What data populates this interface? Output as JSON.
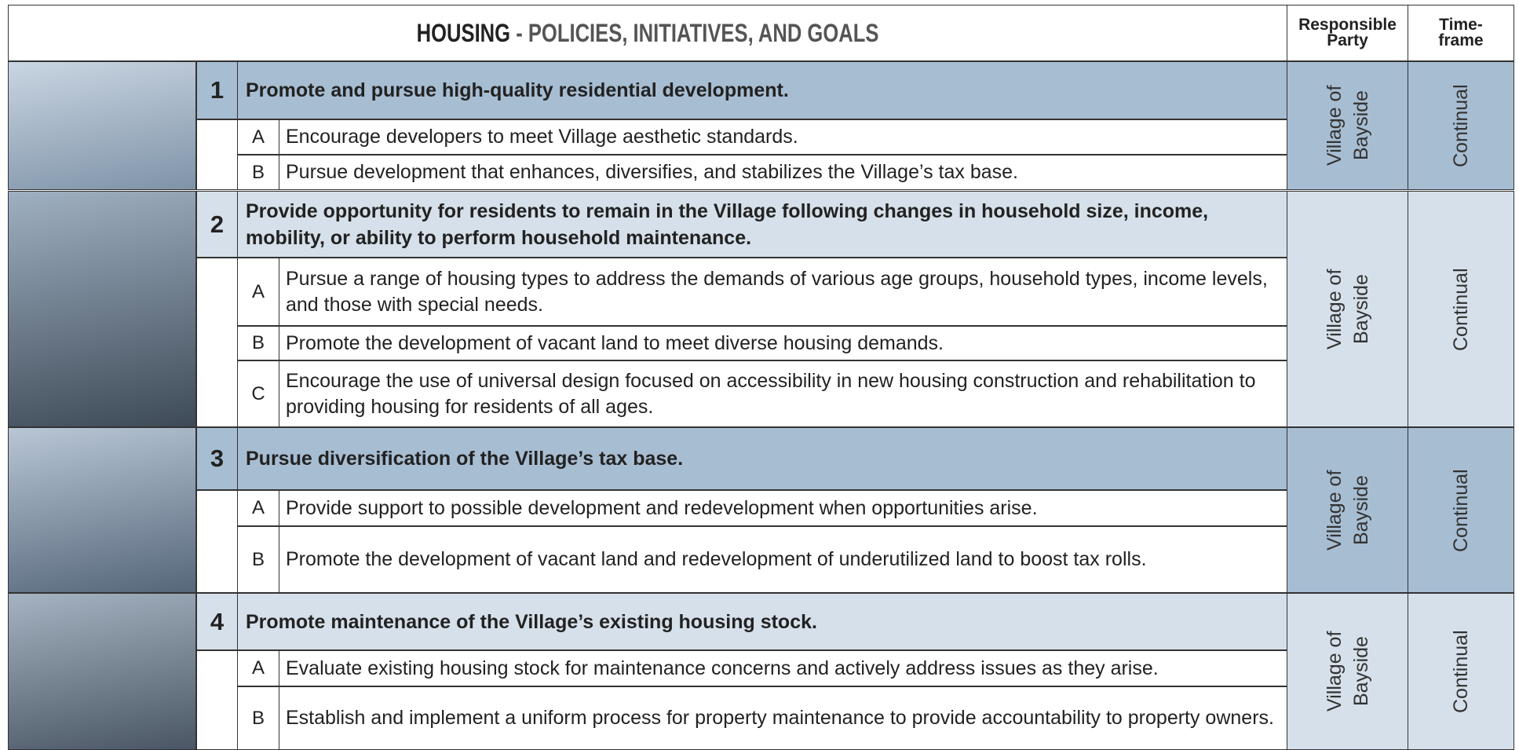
{
  "header": {
    "title_bold": "HOUSING",
    "title_rest": "- POLICIES, INITIATIVES, AND GOALS",
    "responsible": "Responsible Party",
    "timeframe": "Time-frame"
  },
  "sections": [
    {
      "number": "1",
      "goal": "Promote and pursue high-quality residential development.",
      "responsible": "Village of Bayside",
      "timeframe": "Continual",
      "items": [
        {
          "letter": "A",
          "text": "Encourage developers to meet Village aesthetic standards."
        },
        {
          "letter": "B",
          "text": "Pursue development that enhances, diversifies, and stabilizes the Village’s tax base."
        }
      ]
    },
    {
      "number": "2",
      "goal": "Provide opportunity for residents to remain in the Village following changes in household size, income, mobility, or ability to perform household maintenance.",
      "responsible": "Village of Bayside",
      "timeframe": "Continual",
      "items": [
        {
          "letter": "A",
          "text": "Pursue a range of housing types to address the demands of various age groups, household types, income levels, and those with special needs."
        },
        {
          "letter": "B",
          "text": "Promote the development of vacant land to meet diverse housing demands."
        },
        {
          "letter": "C",
          "text": "Encourage the use of universal design focused on accessibility in new housing construction and rehabilitation to providing housing for residents of all ages."
        }
      ]
    },
    {
      "number": "3",
      "goal": "Pursue diversification of the Village’s tax base.",
      "responsible": "Village of Bayside",
      "timeframe": "Continual",
      "items": [
        {
          "letter": "A",
          "text": "Provide support to possible development and redevelopment when opportunities arise."
        },
        {
          "letter": "B",
          "text": "Promote the development of vacant land and redevelopment of underutilized land to boost tax rolls."
        }
      ]
    },
    {
      "number": "4",
      "goal": "Promote maintenance of the Village’s existing housing stock.",
      "responsible": "Village of Bayside",
      "timeframe": "Continual",
      "items": [
        {
          "letter": "A",
          "text": "Evaluate existing housing stock for maintenance concerns and actively address issues as they arise."
        },
        {
          "letter": "B",
          "text": "Establish and implement a uniform process for property maintenance to provide accountability to property owners."
        }
      ]
    }
  ]
}
